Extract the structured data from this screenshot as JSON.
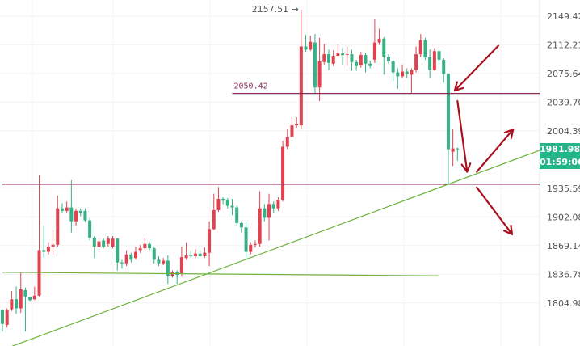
{
  "chart_data": {
    "type": "candlestick",
    "y_scale": "log",
    "ylim": [
      1758.3,
      2170.5
    ],
    "up_color": "#e0424f",
    "down_color": "#35b185",
    "grid": true,
    "y_ticks": [
      "2149.42",
      "2112.21",
      "2075.64",
      "2039.70",
      "2004.39",
      "1935.59",
      "1902.08",
      "1869.14",
      "1836.78",
      "1804.98"
    ],
    "y_tick_values": [
      2149.42,
      2112.21,
      2075.64,
      2039.7,
      2004.39,
      1935.59,
      1902.08,
      1869.14,
      1836.78,
      1804.98
    ],
    "high_marker": {
      "label": "2157.51 →",
      "value": 2157.51,
      "candle": 65
    },
    "last_price": {
      "label": "1981.98",
      "value": 1981.98,
      "color": "#26b589"
    },
    "countdown": "01:59:06",
    "candles": [
      [
        1797,
        1798,
        1774,
        1782
      ],
      [
        1781,
        1799,
        1778,
        1797
      ],
      [
        1798,
        1818,
        1796,
        1809
      ],
      [
        1809,
        1823,
        1793,
        1799
      ],
      [
        1799,
        1839,
        1794,
        1820
      ],
      [
        1819,
        1822,
        1774,
        1812
      ],
      [
        1811,
        1812,
        1807,
        1808
      ],
      [
        1809,
        1823,
        1808,
        1813
      ],
      [
        1813,
        1951,
        1812,
        1864
      ],
      [
        1864,
        1892,
        1855,
        1862
      ],
      [
        1862,
        1873,
        1859,
        1868
      ],
      [
        1868,
        1887,
        1859,
        1870
      ],
      [
        1870,
        1927,
        1868,
        1912
      ],
      [
        1912,
        1918,
        1906,
        1909
      ],
      [
        1909,
        1920,
        1906,
        1913
      ],
      [
        1913,
        1945,
        1884,
        1897
      ],
      [
        1897,
        1912,
        1892,
        1909
      ],
      [
        1909,
        1912,
        1903,
        1907
      ],
      [
        1909,
        1912,
        1896,
        1898
      ],
      [
        1898,
        1901,
        1875,
        1878
      ],
      [
        1878,
        1880,
        1855,
        1868
      ],
      [
        1868,
        1878,
        1866,
        1874
      ],
      [
        1875,
        1877,
        1866,
        1868
      ],
      [
        1871,
        1880,
        1868,
        1877
      ],
      [
        1868,
        1880,
        1866,
        1877
      ],
      [
        1877,
        1878,
        1841,
        1850
      ],
      [
        1850,
        1853,
        1843,
        1849
      ],
      [
        1849,
        1864,
        1846,
        1859
      ],
      [
        1859,
        1861,
        1850,
        1853
      ],
      [
        1855,
        1868,
        1853,
        1862
      ],
      [
        1864,
        1870,
        1861,
        1866
      ],
      [
        1866,
        1878,
        1864,
        1871
      ],
      [
        1871,
        1873,
        1864,
        1866
      ],
      [
        1866,
        1868,
        1849,
        1853
      ],
      [
        1853,
        1857,
        1846,
        1849
      ],
      [
        1849,
        1855,
        1847,
        1852
      ],
      [
        1852,
        1858,
        1826,
        1835
      ],
      [
        1835,
        1841,
        1833,
        1839
      ],
      [
        1839,
        1841,
        1826,
        1836
      ],
      [
        1837,
        1868,
        1834,
        1856
      ],
      [
        1855,
        1873,
        1853,
        1858
      ],
      [
        1858,
        1864,
        1855,
        1857
      ],
      [
        1857,
        1865,
        1855,
        1860
      ],
      [
        1860,
        1864,
        1855,
        1857
      ],
      [
        1857,
        1867,
        1855,
        1861
      ],
      [
        1861,
        1897,
        1846,
        1888
      ],
      [
        1888,
        1929,
        1887,
        1910
      ],
      [
        1910,
        1937,
        1908,
        1923
      ],
      [
        1923,
        1925,
        1917,
        1921
      ],
      [
        1922,
        1924,
        1912,
        1915
      ],
      [
        1915,
        1923,
        1904,
        1913
      ],
      [
        1913,
        1915,
        1892,
        1895
      ],
      [
        1895,
        1897,
        1884,
        1890
      ],
      [
        1890,
        1897,
        1853,
        1862
      ],
      [
        1862,
        1873,
        1859,
        1870
      ],
      [
        1870,
        1875,
        1867,
        1871
      ],
      [
        1871,
        1932,
        1868,
        1912
      ],
      [
        1912,
        1917,
        1897,
        1901
      ],
      [
        1901,
        1929,
        1875,
        1917
      ],
      [
        1917,
        1920,
        1906,
        1912
      ],
      [
        1912,
        1925,
        1909,
        1922
      ],
      [
        1922,
        1992,
        1920,
        1985
      ],
      [
        1985,
        2006,
        1982,
        1997
      ],
      [
        1997,
        2021,
        1995,
        2011
      ],
      [
        2011,
        2021,
        2008,
        2013
      ],
      [
        2011,
        2157.51,
        2006,
        2110
      ],
      [
        2110,
        2125,
        2103,
        2106
      ],
      [
        2106,
        2124,
        2104,
        2116
      ],
      [
        2115,
        2126,
        2051,
        2058
      ],
      [
        2058,
        2121,
        2041,
        2091
      ],
      [
        2090,
        2113,
        2087,
        2100
      ],
      [
        2100,
        2106,
        2080,
        2089
      ],
      [
        2088,
        2105,
        2085,
        2098
      ],
      [
        2098,
        2112,
        2096,
        2101
      ],
      [
        2101,
        2108,
        2087,
        2099
      ],
      [
        2099,
        2110,
        2085,
        2100
      ],
      [
        2100,
        2106,
        2079,
        2090
      ],
      [
        2090,
        2093,
        2079,
        2085
      ],
      [
        2086,
        2103,
        2083,
        2099
      ],
      [
        2099,
        2102,
        2077,
        2088
      ],
      [
        2088,
        2092,
        2082,
        2085
      ],
      [
        2093,
        2145,
        2089,
        2115
      ],
      [
        2115,
        2133,
        2112,
        2120
      ],
      [
        2120,
        2122,
        2074,
        2097
      ],
      [
        2097,
        2100,
        2088,
        2091
      ],
      [
        2091,
        2093,
        2066,
        2077
      ],
      [
        2077,
        2082,
        2056,
        2072
      ],
      [
        2072,
        2087,
        2070,
        2078
      ],
      [
        2078,
        2082,
        2070,
        2075
      ],
      [
        2074,
        2082,
        2051,
        2080
      ],
      [
        2080,
        2110,
        2077,
        2100
      ],
      [
        2100,
        2126,
        2096,
        2118
      ],
      [
        2118,
        2121,
        2093,
        2096
      ],
      [
        2096,
        2106,
        2070,
        2080
      ],
      [
        2080,
        2108,
        2079,
        2104
      ],
      [
        2104,
        2106,
        2087,
        2093
      ],
      [
        2093,
        2095,
        2064,
        2075
      ],
      [
        2075,
        2076,
        1940,
        1982
      ],
      [
        1979,
        2006,
        1962,
        1983
      ],
      [
        1983,
        1984,
        1968,
        1982
      ]
    ],
    "drawings": {
      "horizontal_lines": [
        {
          "price": 2050.42,
          "label": "2050.42",
          "from_candle": 50,
          "color": "#8b2a56"
        },
        {
          "price": 1940.3,
          "label": "",
          "from_candle": 0,
          "color": "#8b2a56"
        }
      ],
      "trend_lines": [
        {
          "from": [
            0,
            1839
          ],
          "to": [
            95,
            1835
          ],
          "color": "#6db33f"
        },
        {
          "from": [
            2.1,
            1758
          ],
          "to": [
            117,
            1981
          ],
          "color": "#6db33f"
        }
      ],
      "arrows": [
        {
          "from": [
            107.9,
            2111
          ],
          "to": [
            98.4,
            2054
          ],
          "color": "#a8101e"
        },
        {
          "from": [
            99,
            2041
          ],
          "to": [
            101.1,
            1955
          ],
          "color": "#a8101e"
        },
        {
          "from": [
            103.2,
            1955
          ],
          "to": [
            111.1,
            2006
          ],
          "color": "#a8101e"
        },
        {
          "from": [
            103.2,
            1936.5
          ],
          "to": [
            110.9,
            1882
          ],
          "color": "#a8101e"
        }
      ]
    }
  }
}
